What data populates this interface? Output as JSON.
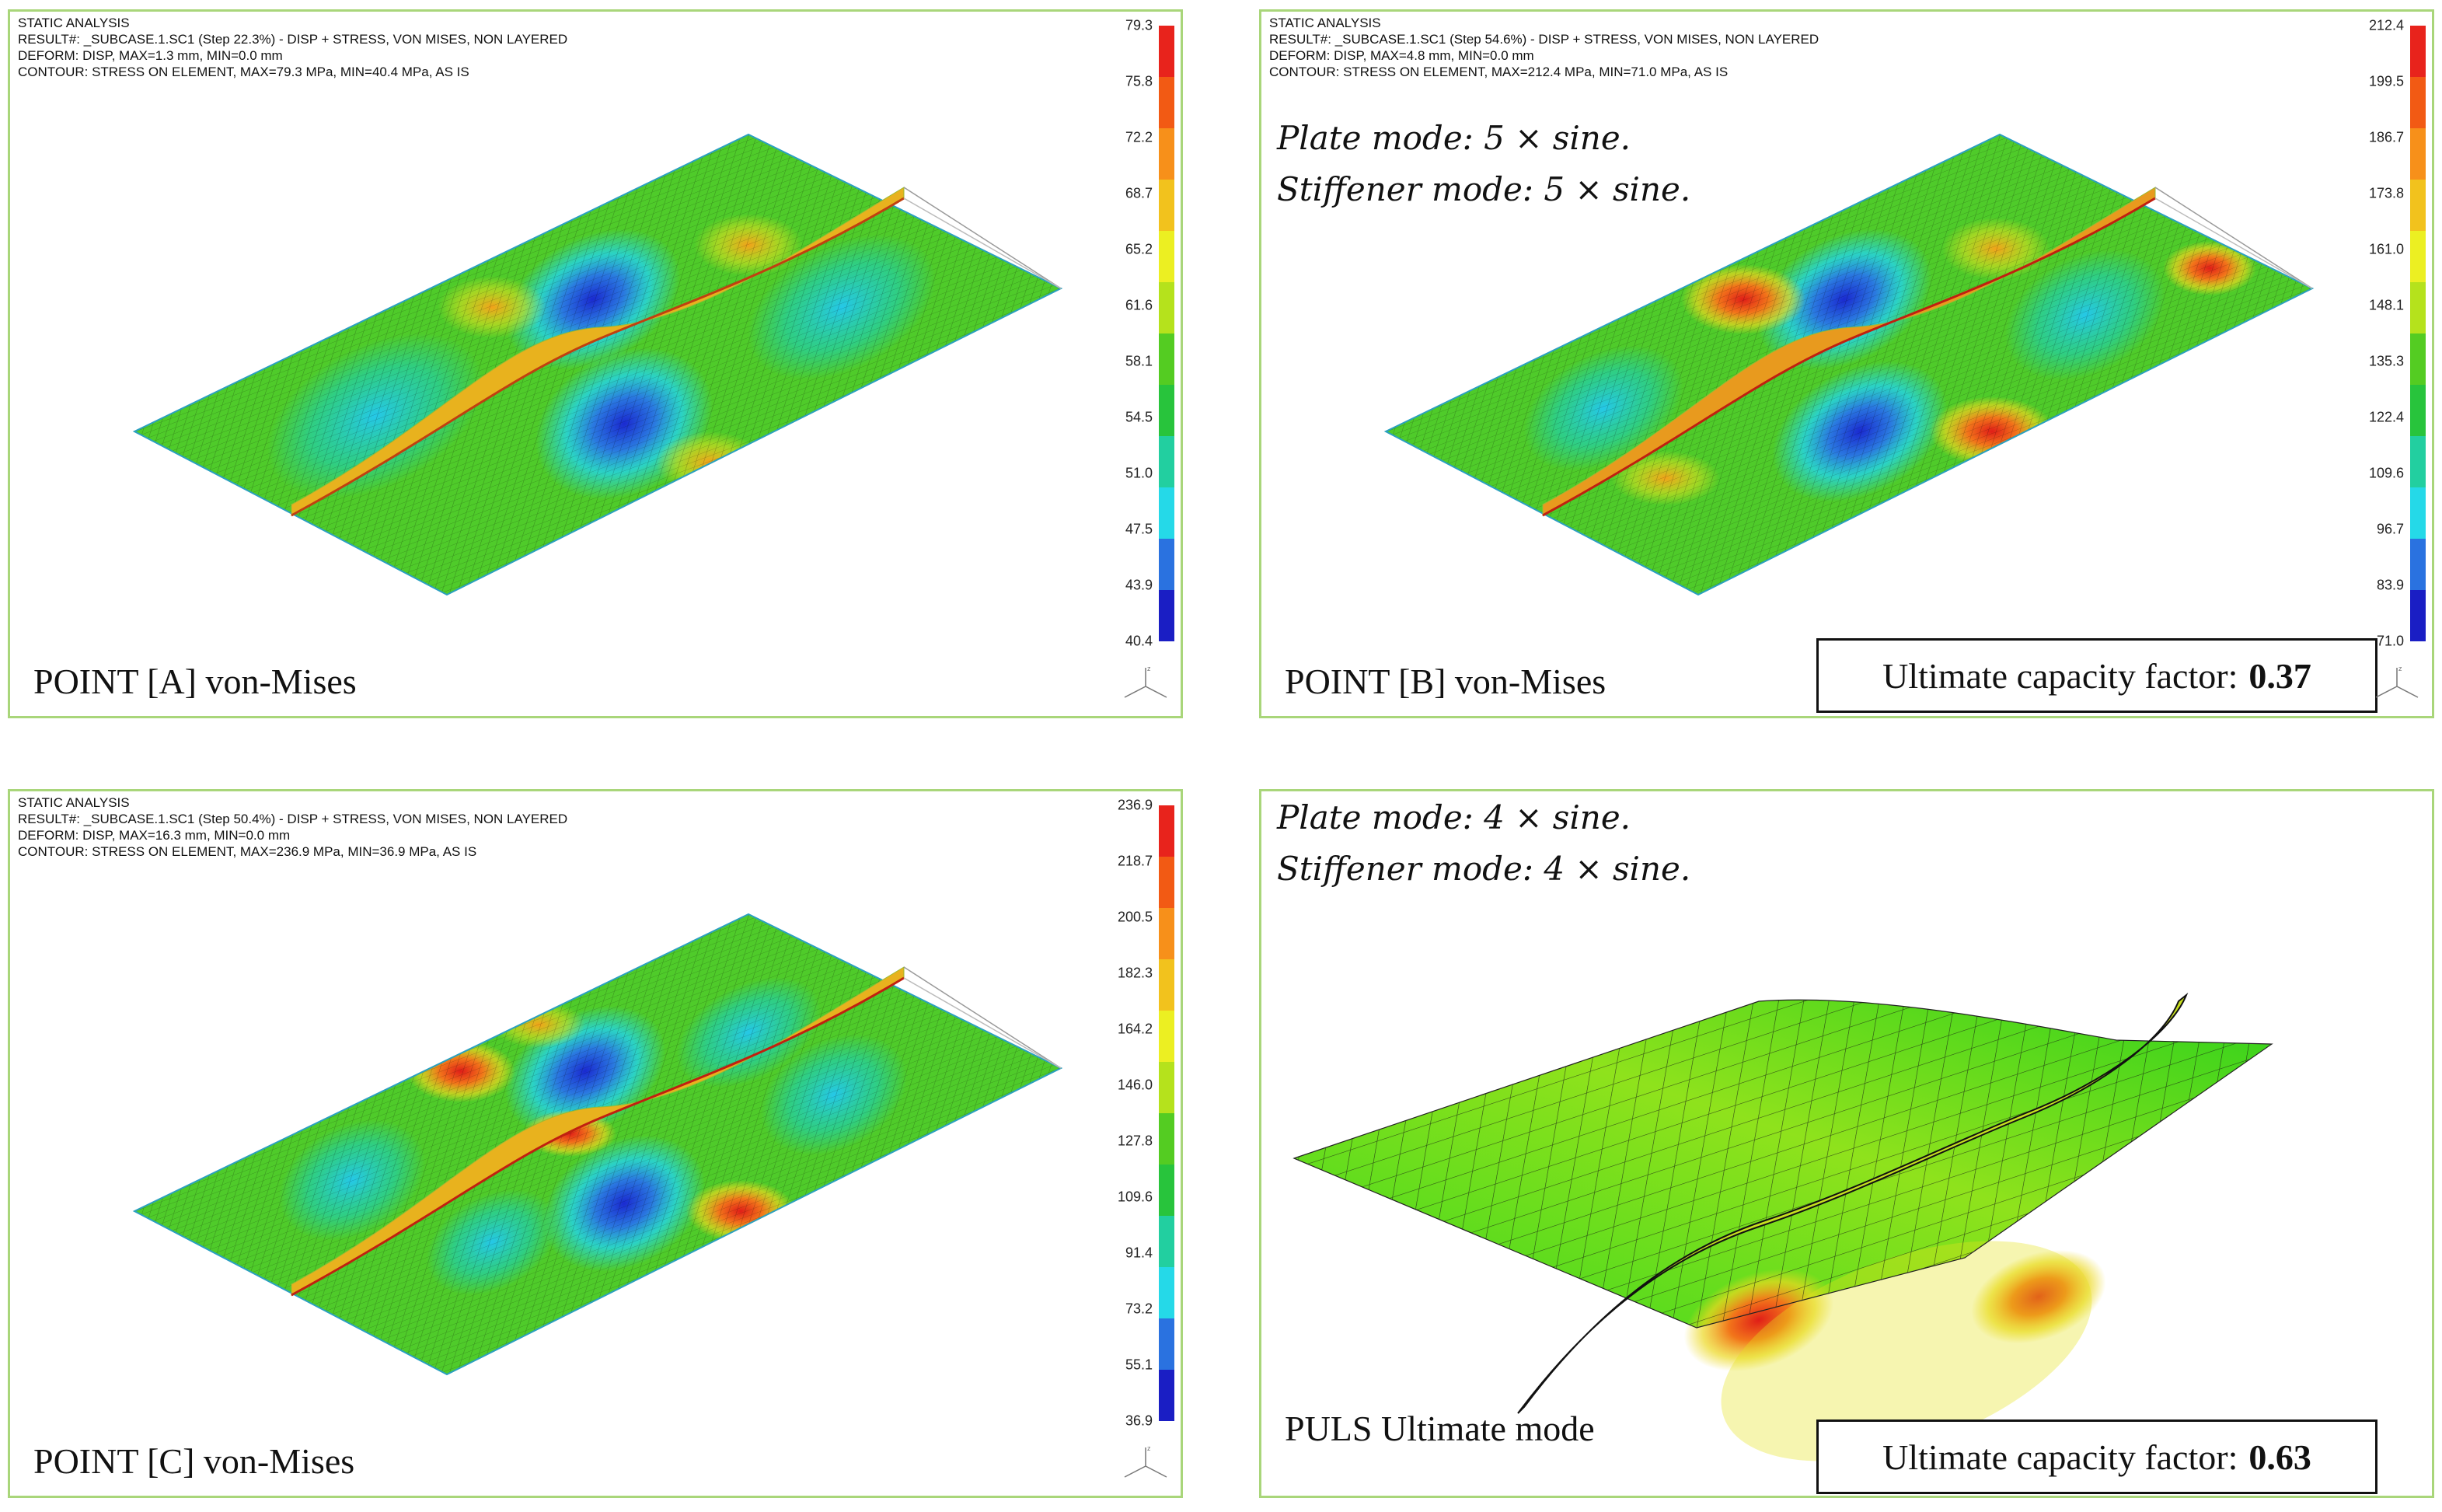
{
  "panels": [
    {
      "id": "A",
      "header": [
        "STATIC ANALYSIS",
        "RESULT#: _SUBCASE.1.SC1 (Step 22.3%) - DISP + STRESS, VON MISES, NON LAYERED",
        "DEFORM: DISP, MAX=1.3 mm, MIN=0.0 mm",
        "CONTOUR: STRESS ON ELEMENT, MAX=79.3 MPa, MIN=40.4 MPa, AS IS"
      ],
      "legend_ticks": [
        "79.3",
        "75.8",
        "72.2",
        "68.7",
        "65.2",
        "61.6",
        "58.1",
        "54.5",
        "51.0",
        "47.5",
        "43.9",
        "40.4"
      ],
      "caption": "POINT [A] von-Mises"
    },
    {
      "id": "B",
      "header": [
        "STATIC ANALYSIS",
        "RESULT#: _SUBCASE.1.SC1 (Step 54.6%) - DISP + STRESS, VON MISES, NON LAYERED",
        "DEFORM: DISP, MAX=4.8 mm, MIN=0.0 mm",
        "CONTOUR: STRESS ON ELEMENT, MAX=212.4 MPa, MIN=71.0 MPa, AS IS"
      ],
      "legend_ticks": [
        "212.4",
        "199.5",
        "186.7",
        "173.8",
        "161.0",
        "148.1",
        "135.3",
        "122.4",
        "109.6",
        "96.7",
        "83.9",
        "71.0"
      ],
      "modes": [
        "Plate mode: 5 × sine.",
        "Stiffener mode: 5 × sine."
      ],
      "caption": "POINT [B] von-Mises",
      "capacity_label": "Ultimate capacity factor:",
      "capacity_value": "0.37"
    },
    {
      "id": "C",
      "header": [
        "STATIC ANALYSIS",
        "RESULT#: _SUBCASE.1.SC1 (Step 50.4%) - DISP + STRESS, VON MISES, NON LAYERED",
        "DEFORM: DISP, MAX=16.3 mm, MIN=0.0 mm",
        "CONTOUR: STRESS ON ELEMENT, MAX=236.9 MPa, MIN=36.9 MPa, AS IS"
      ],
      "legend_ticks": [
        "236.9",
        "218.7",
        "200.5",
        "182.3",
        "164.2",
        "146.0",
        "127.8",
        "109.6",
        "91.4",
        "73.2",
        "55.1",
        "36.9"
      ],
      "caption": "POINT [C] von-Mises"
    },
    {
      "id": "D",
      "modes": [
        "Plate mode: 4 × sine.",
        "Stiffener mode: 4 × sine."
      ],
      "caption": "PULS Ultimate mode",
      "capacity_label": "Ultimate capacity factor:",
      "capacity_value": "0.63"
    }
  ],
  "colors": {
    "panel_border": "#a9d67a",
    "contour_scale": [
      "#e8231c",
      "#f25a14",
      "#f7901a",
      "#f2c21d",
      "#ecef22",
      "#b5e21c",
      "#54cc22",
      "#28c43c",
      "#22cfa0",
      "#25d9e8",
      "#2a72e0",
      "#1a1ec4"
    ]
  }
}
